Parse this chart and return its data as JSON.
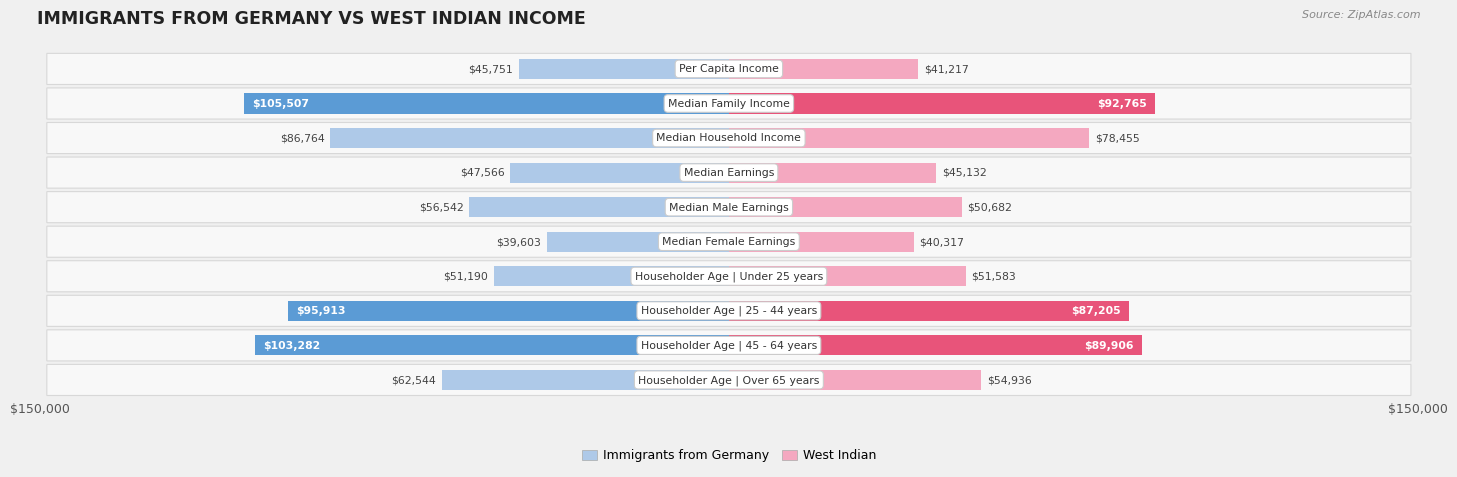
{
  "title": "IMMIGRANTS FROM GERMANY VS WEST INDIAN INCOME",
  "source": "Source: ZipAtlas.com",
  "categories": [
    "Per Capita Income",
    "Median Family Income",
    "Median Household Income",
    "Median Earnings",
    "Median Male Earnings",
    "Median Female Earnings",
    "Householder Age | Under 25 years",
    "Householder Age | 25 - 44 years",
    "Householder Age | 45 - 64 years",
    "Householder Age | Over 65 years"
  ],
  "germany_values": [
    45751,
    105507,
    86764,
    47566,
    56542,
    39603,
    51190,
    95913,
    103282,
    62544
  ],
  "westindian_values": [
    41217,
    92765,
    78455,
    45132,
    50682,
    40317,
    51583,
    87205,
    89906,
    54936
  ],
  "germany_labels": [
    "$45,751",
    "$105,507",
    "$86,764",
    "$47,566",
    "$56,542",
    "$39,603",
    "$51,190",
    "$95,913",
    "$103,282",
    "$62,544"
  ],
  "westindian_labels": [
    "$41,217",
    "$92,765",
    "$78,455",
    "$45,132",
    "$50,682",
    "$40,317",
    "$51,583",
    "$87,205",
    "$89,906",
    "$54,936"
  ],
  "max_value": 150000,
  "germany_color_light": "#aec9e8",
  "germany_color_dark": "#5b9bd5",
  "westindian_color_light": "#f4a8c0",
  "westindian_color_dark": "#e8547a",
  "germany_highlight": [
    1,
    7,
    8
  ],
  "westindian_highlight": [
    1,
    7,
    8
  ],
  "background_color": "#f0f0f0",
  "row_bg": "#f8f8f8",
  "row_border": "#d8d8d8",
  "x_axis_label_left": "$150,000",
  "x_axis_label_right": "$150,000",
  "legend_germany": "Immigrants from Germany",
  "legend_westindian": "West Indian",
  "title_color": "#222222",
  "source_color": "#888888",
  "label_color_dark": "#444444",
  "label_color_white": "#ffffff"
}
